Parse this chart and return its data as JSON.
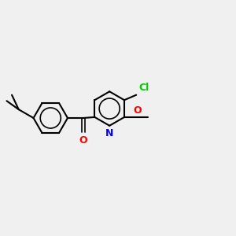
{
  "background_color": "#f0f0f0",
  "bond_color": "#000000",
  "atom_colors": {
    "O": "#ff0000",
    "N": "#0000ff",
    "Cl": "#00cc00",
    "C": "#000000"
  },
  "figsize": [
    3.0,
    3.0
  ],
  "dpi": 100
}
